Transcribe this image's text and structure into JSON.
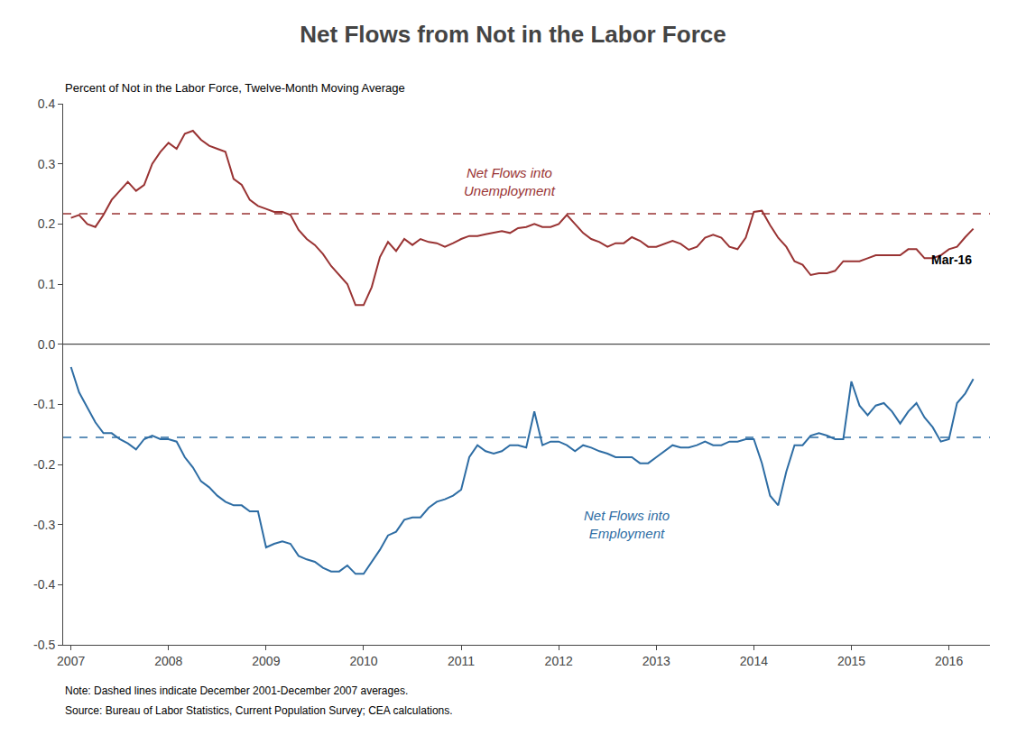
{
  "chart_data": {
    "type": "line",
    "title": "Net Flows from Not in the Labor Force",
    "subtitle": "Percent of Not in the Labor Force, Twelve-Month Moving Average",
    "annotation": "Mar-16",
    "notes": [
      "Note: Dashed lines indicate December 2001-December 2007 averages.",
      "Source: Bureau of Labor Statistics, Current Population Survey; CEA calculations."
    ],
    "x": [
      2007.0,
      2007.083,
      2007.167,
      2007.25,
      2007.333,
      2007.417,
      2007.5,
      2007.583,
      2007.667,
      2007.75,
      2007.833,
      2007.917,
      2008.0,
      2008.083,
      2008.167,
      2008.25,
      2008.333,
      2008.417,
      2008.5,
      2008.583,
      2008.667,
      2008.75,
      2008.833,
      2008.917,
      2009.0,
      2009.083,
      2009.167,
      2009.25,
      2009.333,
      2009.417,
      2009.5,
      2009.583,
      2009.667,
      2009.75,
      2009.833,
      2009.917,
      2010.0,
      2010.083,
      2010.167,
      2010.25,
      2010.333,
      2010.417,
      2010.5,
      2010.583,
      2010.667,
      2010.75,
      2010.833,
      2010.917,
      2011.0,
      2011.083,
      2011.167,
      2011.25,
      2011.333,
      2011.417,
      2011.5,
      2011.583,
      2011.667,
      2011.75,
      2011.833,
      2011.917,
      2012.0,
      2012.083,
      2012.167,
      2012.25,
      2012.333,
      2012.417,
      2012.5,
      2012.583,
      2012.667,
      2012.75,
      2012.833,
      2012.917,
      2013.0,
      2013.083,
      2013.167,
      2013.25,
      2013.333,
      2013.417,
      2013.5,
      2013.583,
      2013.667,
      2013.75,
      2013.833,
      2013.917,
      2014.0,
      2014.083,
      2014.167,
      2014.25,
      2014.333,
      2014.417,
      2014.5,
      2014.583,
      2014.667,
      2014.75,
      2014.833,
      2014.917,
      2015.0,
      2015.083,
      2015.167,
      2015.25,
      2015.333,
      2015.417,
      2015.5,
      2015.583,
      2015.667,
      2015.75,
      2015.833,
      2015.917,
      2016.0,
      2016.083,
      2016.167,
      2016.25
    ],
    "series": [
      {
        "name": "Net Flows into\nUnemployment",
        "color": "#993333",
        "values": [
          0.21,
          0.215,
          0.2,
          0.195,
          0.215,
          0.24,
          0.255,
          0.27,
          0.255,
          0.265,
          0.3,
          0.32,
          0.335,
          0.325,
          0.35,
          0.355,
          0.34,
          0.33,
          0.325,
          0.32,
          0.275,
          0.265,
          0.24,
          0.23,
          0.225,
          0.22,
          0.22,
          0.215,
          0.19,
          0.175,
          0.165,
          0.15,
          0.13,
          0.115,
          0.1,
          0.065,
          0.065,
          0.095,
          0.145,
          0.17,
          0.155,
          0.175,
          0.165,
          0.175,
          0.17,
          0.168,
          0.162,
          0.168,
          0.175,
          0.18,
          0.18,
          0.183,
          0.185,
          0.188,
          0.185,
          0.193,
          0.195,
          0.2,
          0.195,
          0.195,
          0.2,
          0.215,
          0.2,
          0.185,
          0.175,
          0.17,
          0.162,
          0.168,
          0.168,
          0.178,
          0.172,
          0.162,
          0.162,
          0.167,
          0.172,
          0.167,
          0.157,
          0.162,
          0.177,
          0.182,
          0.177,
          0.162,
          0.158,
          0.177,
          0.22,
          0.222,
          0.198,
          0.177,
          0.162,
          0.138,
          0.132,
          0.115,
          0.118,
          0.118,
          0.122,
          0.138,
          0.138,
          0.138,
          0.143,
          0.148,
          0.148,
          0.148,
          0.148,
          0.158,
          0.158,
          0.143,
          0.143,
          0.148,
          0.158,
          0.162,
          0.178,
          0.192
        ]
      },
      {
        "name": "Net Flows into\nEmployment",
        "color": "#2e6da4",
        "values": [
          -0.038,
          -0.08,
          -0.105,
          -0.13,
          -0.148,
          -0.148,
          -0.158,
          -0.165,
          -0.175,
          -0.158,
          -0.152,
          -0.158,
          -0.158,
          -0.162,
          -0.188,
          -0.205,
          -0.228,
          -0.238,
          -0.252,
          -0.262,
          -0.268,
          -0.268,
          -0.278,
          -0.278,
          -0.338,
          -0.332,
          -0.328,
          -0.332,
          -0.352,
          -0.358,
          -0.362,
          -0.372,
          -0.378,
          -0.378,
          -0.368,
          -0.382,
          -0.382,
          -0.362,
          -0.342,
          -0.318,
          -0.312,
          -0.292,
          -0.288,
          -0.288,
          -0.272,
          -0.262,
          -0.258,
          -0.252,
          -0.242,
          -0.188,
          -0.168,
          -0.178,
          -0.182,
          -0.178,
          -0.168,
          -0.168,
          -0.172,
          -0.112,
          -0.168,
          -0.162,
          -0.162,
          -0.168,
          -0.178,
          -0.168,
          -0.172,
          -0.178,
          -0.182,
          -0.188,
          -0.188,
          -0.188,
          -0.198,
          -0.198,
          -0.188,
          -0.178,
          -0.168,
          -0.172,
          -0.172,
          -0.168,
          -0.162,
          -0.168,
          -0.168,
          -0.162,
          -0.162,
          -0.158,
          -0.158,
          -0.198,
          -0.252,
          -0.268,
          -0.212,
          -0.168,
          -0.168,
          -0.152,
          -0.148,
          -0.152,
          -0.158,
          -0.158,
          -0.062,
          -0.102,
          -0.118,
          -0.102,
          -0.098,
          -0.112,
          -0.132,
          -0.112,
          -0.098,
          -0.122,
          -0.138,
          -0.162,
          -0.158,
          -0.098,
          -0.082,
          -0.058
        ]
      }
    ],
    "reference_lines": [
      {
        "value": 0.217,
        "color": "#993333",
        "line_style": "dashed"
      },
      {
        "value": -0.155,
        "color": "#2e6da4",
        "line_style": "dashed"
      },
      {
        "value": 0,
        "color": "#222222",
        "line_style": "solid"
      }
    ],
    "xlim": [
      2006.92,
      2016.42
    ],
    "xticks": [
      2007,
      2008,
      2009,
      2010,
      2011,
      2012,
      2013,
      2014,
      2015,
      2016
    ],
    "ylim": [
      -0.5,
      0.4
    ],
    "yticks": [
      -0.5,
      -0.4,
      -0.3,
      -0.2,
      -0.1,
      {
        "value": 0,
        "label": "0.0"
      },
      0.1,
      0.2,
      0.3,
      0.4
    ],
    "grid": false
  }
}
